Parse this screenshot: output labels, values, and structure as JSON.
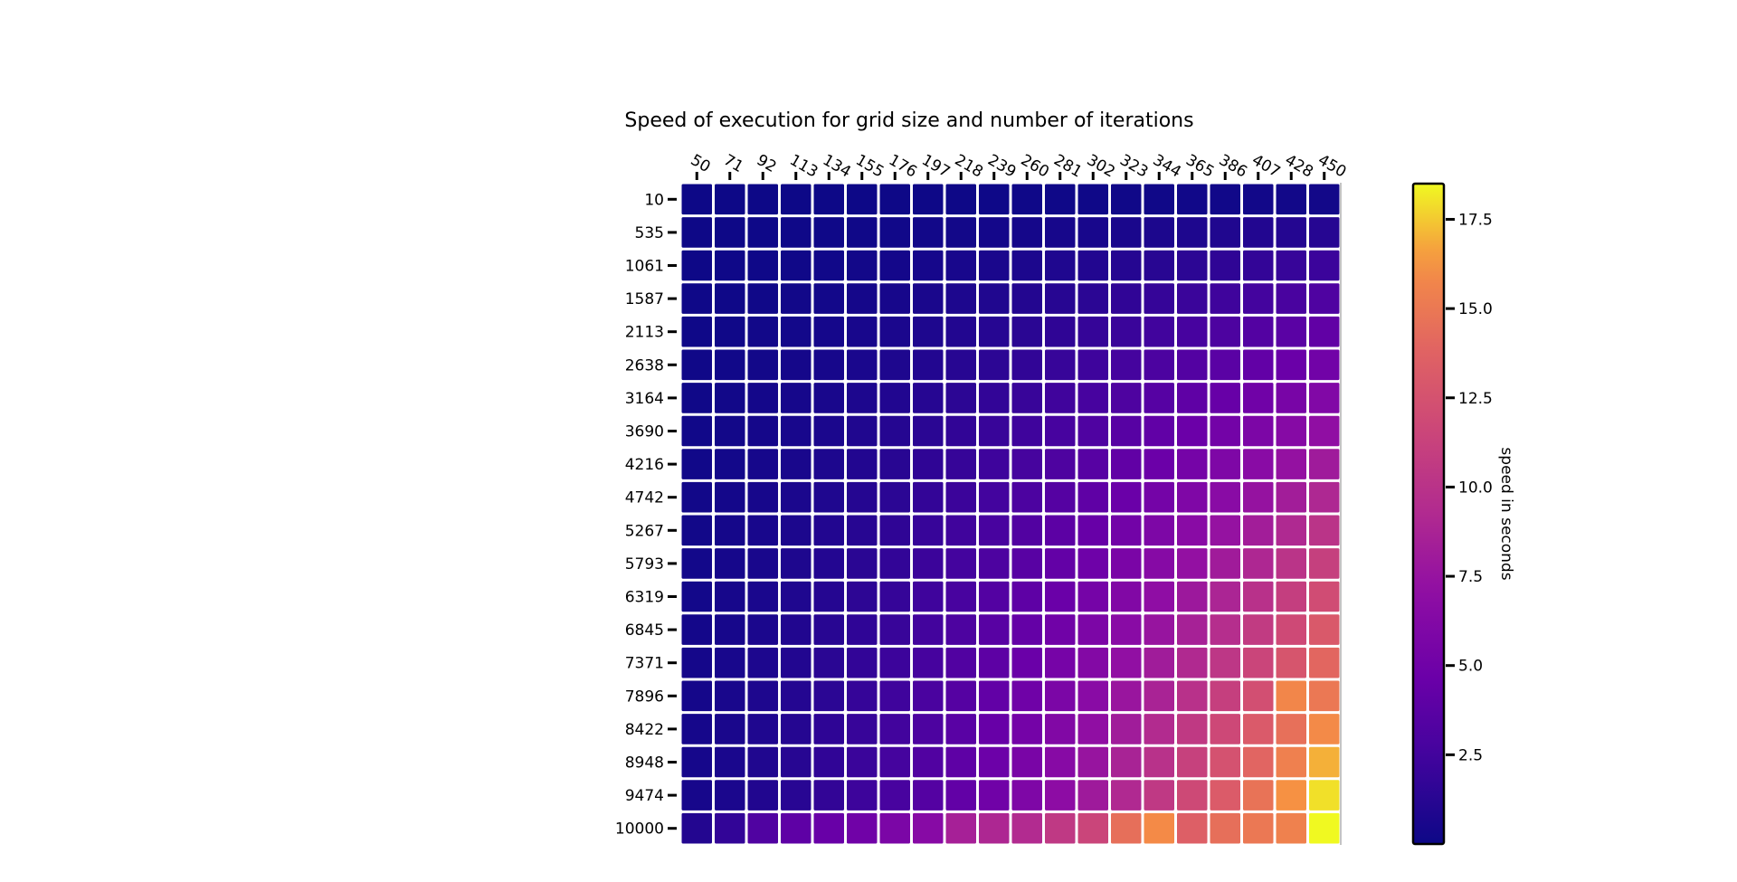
{
  "chart_data": {
    "type": "heatmap",
    "title": "Speed of execution for grid size and number of iterations",
    "x_ticks": [
      "50",
      "71",
      "92",
      "113",
      "134",
      "155",
      "176",
      "197",
      "218",
      "239",
      "260",
      "281",
      "302",
      "323",
      "344",
      "365",
      "386",
      "407",
      "428",
      "450"
    ],
    "y_ticks": [
      "10",
      "535",
      "1061",
      "1587",
      "2113",
      "2638",
      "3164",
      "3690",
      "4216",
      "4742",
      "5267",
      "5793",
      "6319",
      "6845",
      "7371",
      "7896",
      "8422",
      "8948",
      "9474",
      "10000"
    ],
    "x_label": "",
    "y_label": "",
    "x_axis_position": "top",
    "colorbar": {
      "label": "speed in seconds",
      "min": 0,
      "max": 18.5,
      "ticks": [
        "2.5",
        "5.0",
        "7.5",
        "10.0",
        "12.5",
        "15.0",
        "17.5"
      ],
      "colormap": "plasma"
    },
    "values": [
      [
        0.0,
        0.01,
        0.01,
        0.01,
        0.02,
        0.02,
        0.03,
        0.04,
        0.05,
        0.06,
        0.08,
        0.09,
        0.11,
        0.13,
        0.15,
        0.17,
        0.2,
        0.22,
        0.25,
        0.27
      ],
      [
        0.03,
        0.04,
        0.06,
        0.08,
        0.11,
        0.14,
        0.18,
        0.22,
        0.27,
        0.32,
        0.38,
        0.45,
        0.52,
        0.6,
        0.68,
        0.77,
        0.86,
        0.95,
        1.05,
        1.16
      ],
      [
        0.05,
        0.08,
        0.11,
        0.15,
        0.2,
        0.26,
        0.33,
        0.41,
        0.5,
        0.6,
        0.7,
        0.83,
        0.95,
        1.1,
        1.25,
        1.42,
        1.58,
        1.76,
        1.96,
        2.15
      ],
      [
        0.08,
        0.11,
        0.16,
        0.22,
        0.29,
        0.38,
        0.48,
        0.6,
        0.73,
        0.88,
        1.03,
        1.21,
        1.4,
        1.6,
        1.84,
        2.07,
        2.31,
        2.58,
        2.86,
        3.15
      ],
      [
        0.1,
        0.15,
        0.21,
        0.29,
        0.39,
        0.5,
        0.63,
        0.79,
        0.96,
        1.15,
        1.35,
        1.58,
        1.83,
        2.1,
        2.4,
        2.71,
        3.03,
        3.38,
        3.75,
        4.12
      ],
      [
        0.13,
        0.19,
        0.26,
        0.36,
        0.48,
        0.62,
        0.78,
        0.98,
        1.19,
        1.42,
        1.68,
        1.96,
        2.27,
        2.61,
        2.98,
        3.36,
        3.76,
        4.19,
        4.65,
        5.11
      ],
      [
        0.15,
        0.22,
        0.31,
        0.43,
        0.57,
        0.74,
        0.94,
        1.17,
        1.42,
        1.7,
        2.01,
        2.34,
        2.71,
        3.11,
        3.55,
        4.01,
        4.48,
        5.0,
        5.55,
        6.1
      ],
      [
        0.18,
        0.26,
        0.36,
        0.5,
        0.67,
        0.86,
        1.09,
        1.36,
        1.65,
        1.98,
        2.33,
        2.72,
        3.15,
        3.62,
        4.13,
        4.66,
        5.21,
        5.81,
        6.45,
        7.09
      ],
      [
        0.2,
        0.3,
        0.41,
        0.57,
        0.76,
        0.98,
        1.24,
        1.55,
        1.88,
        2.25,
        2.66,
        3.1,
        3.59,
        4.12,
        4.7,
        5.31,
        5.94,
        6.62,
        7.35,
        8.08
      ],
      [
        0.23,
        0.33,
        0.46,
        0.64,
        0.85,
        1.1,
        1.4,
        1.74,
        2.11,
        2.53,
        2.98,
        3.48,
        4.03,
        4.63,
        5.28,
        5.96,
        6.67,
        7.43,
        8.24,
        9.06
      ],
      [
        0.25,
        0.37,
        0.52,
        0.71,
        0.95,
        1.22,
        1.55,
        1.93,
        2.34,
        2.8,
        3.31,
        3.86,
        4.47,
        5.13,
        5.85,
        6.61,
        7.39,
        8.24,
        9.14,
        10.05
      ],
      [
        0.28,
        0.41,
        0.57,
        0.78,
        1.04,
        1.35,
        1.7,
        2.12,
        2.57,
        3.08,
        3.64,
        4.24,
        4.91,
        5.64,
        6.43,
        7.26,
        8.12,
        9.05,
        10.04,
        11.04
      ],
      [
        0.3,
        0.44,
        0.62,
        0.85,
        1.13,
        1.47,
        1.86,
        2.31,
        2.8,
        3.36,
        3.96,
        4.62,
        5.35,
        6.15,
        7.0,
        7.91,
        8.85,
        9.86,
        10.94,
        12.03
      ],
      [
        0.33,
        0.48,
        0.67,
        0.92,
        1.23,
        1.59,
        2.01,
        2.5,
        3.04,
        3.63,
        4.29,
        5.0,
        5.79,
        6.65,
        7.58,
        8.56,
        9.58,
        10.67,
        11.84,
        13.02
      ],
      [
        0.35,
        0.52,
        0.72,
        0.99,
        1.32,
        1.71,
        2.17,
        2.69,
        3.27,
        3.91,
        4.61,
        5.38,
        6.23,
        7.16,
        8.16,
        9.21,
        10.3,
        11.48,
        12.74,
        14.01
      ],
      [
        0.38,
        0.55,
        0.77,
        1.06,
        1.41,
        1.83,
        2.32,
        2.88,
        3.5,
        4.18,
        4.94,
        5.76,
        6.67,
        7.67,
        8.73,
        9.86,
        11.03,
        12.29,
        15.8,
        15.0
      ],
      [
        0.4,
        0.59,
        0.82,
        1.13,
        1.51,
        1.95,
        2.48,
        3.07,
        3.73,
        4.46,
        5.26,
        6.14,
        7.11,
        8.17,
        9.31,
        10.51,
        11.76,
        13.1,
        14.53,
        15.99
      ],
      [
        0.43,
        0.62,
        0.87,
        1.2,
        1.6,
        2.08,
        2.63,
        3.26,
        3.96,
        4.74,
        5.59,
        6.52,
        7.55,
        8.68,
        9.89,
        11.16,
        12.49,
        13.91,
        15.43,
        16.98
      ],
      [
        0.45,
        0.66,
        0.92,
        1.27,
        1.69,
        2.2,
        2.78,
        3.45,
        4.19,
        5.01,
        5.92,
        6.9,
        7.99,
        9.19,
        10.46,
        11.81,
        13.21,
        14.72,
        16.33,
        17.97
      ],
      [
        1.0,
        1.7,
        3.2,
        4.0,
        4.5,
        5.0,
        5.7,
        6.5,
        8.5,
        9.0,
        9.3,
        10.5,
        11.5,
        14.5,
        16.0,
        13.5,
        14.5,
        15.0,
        15.5,
        18.5
      ]
    ]
  }
}
